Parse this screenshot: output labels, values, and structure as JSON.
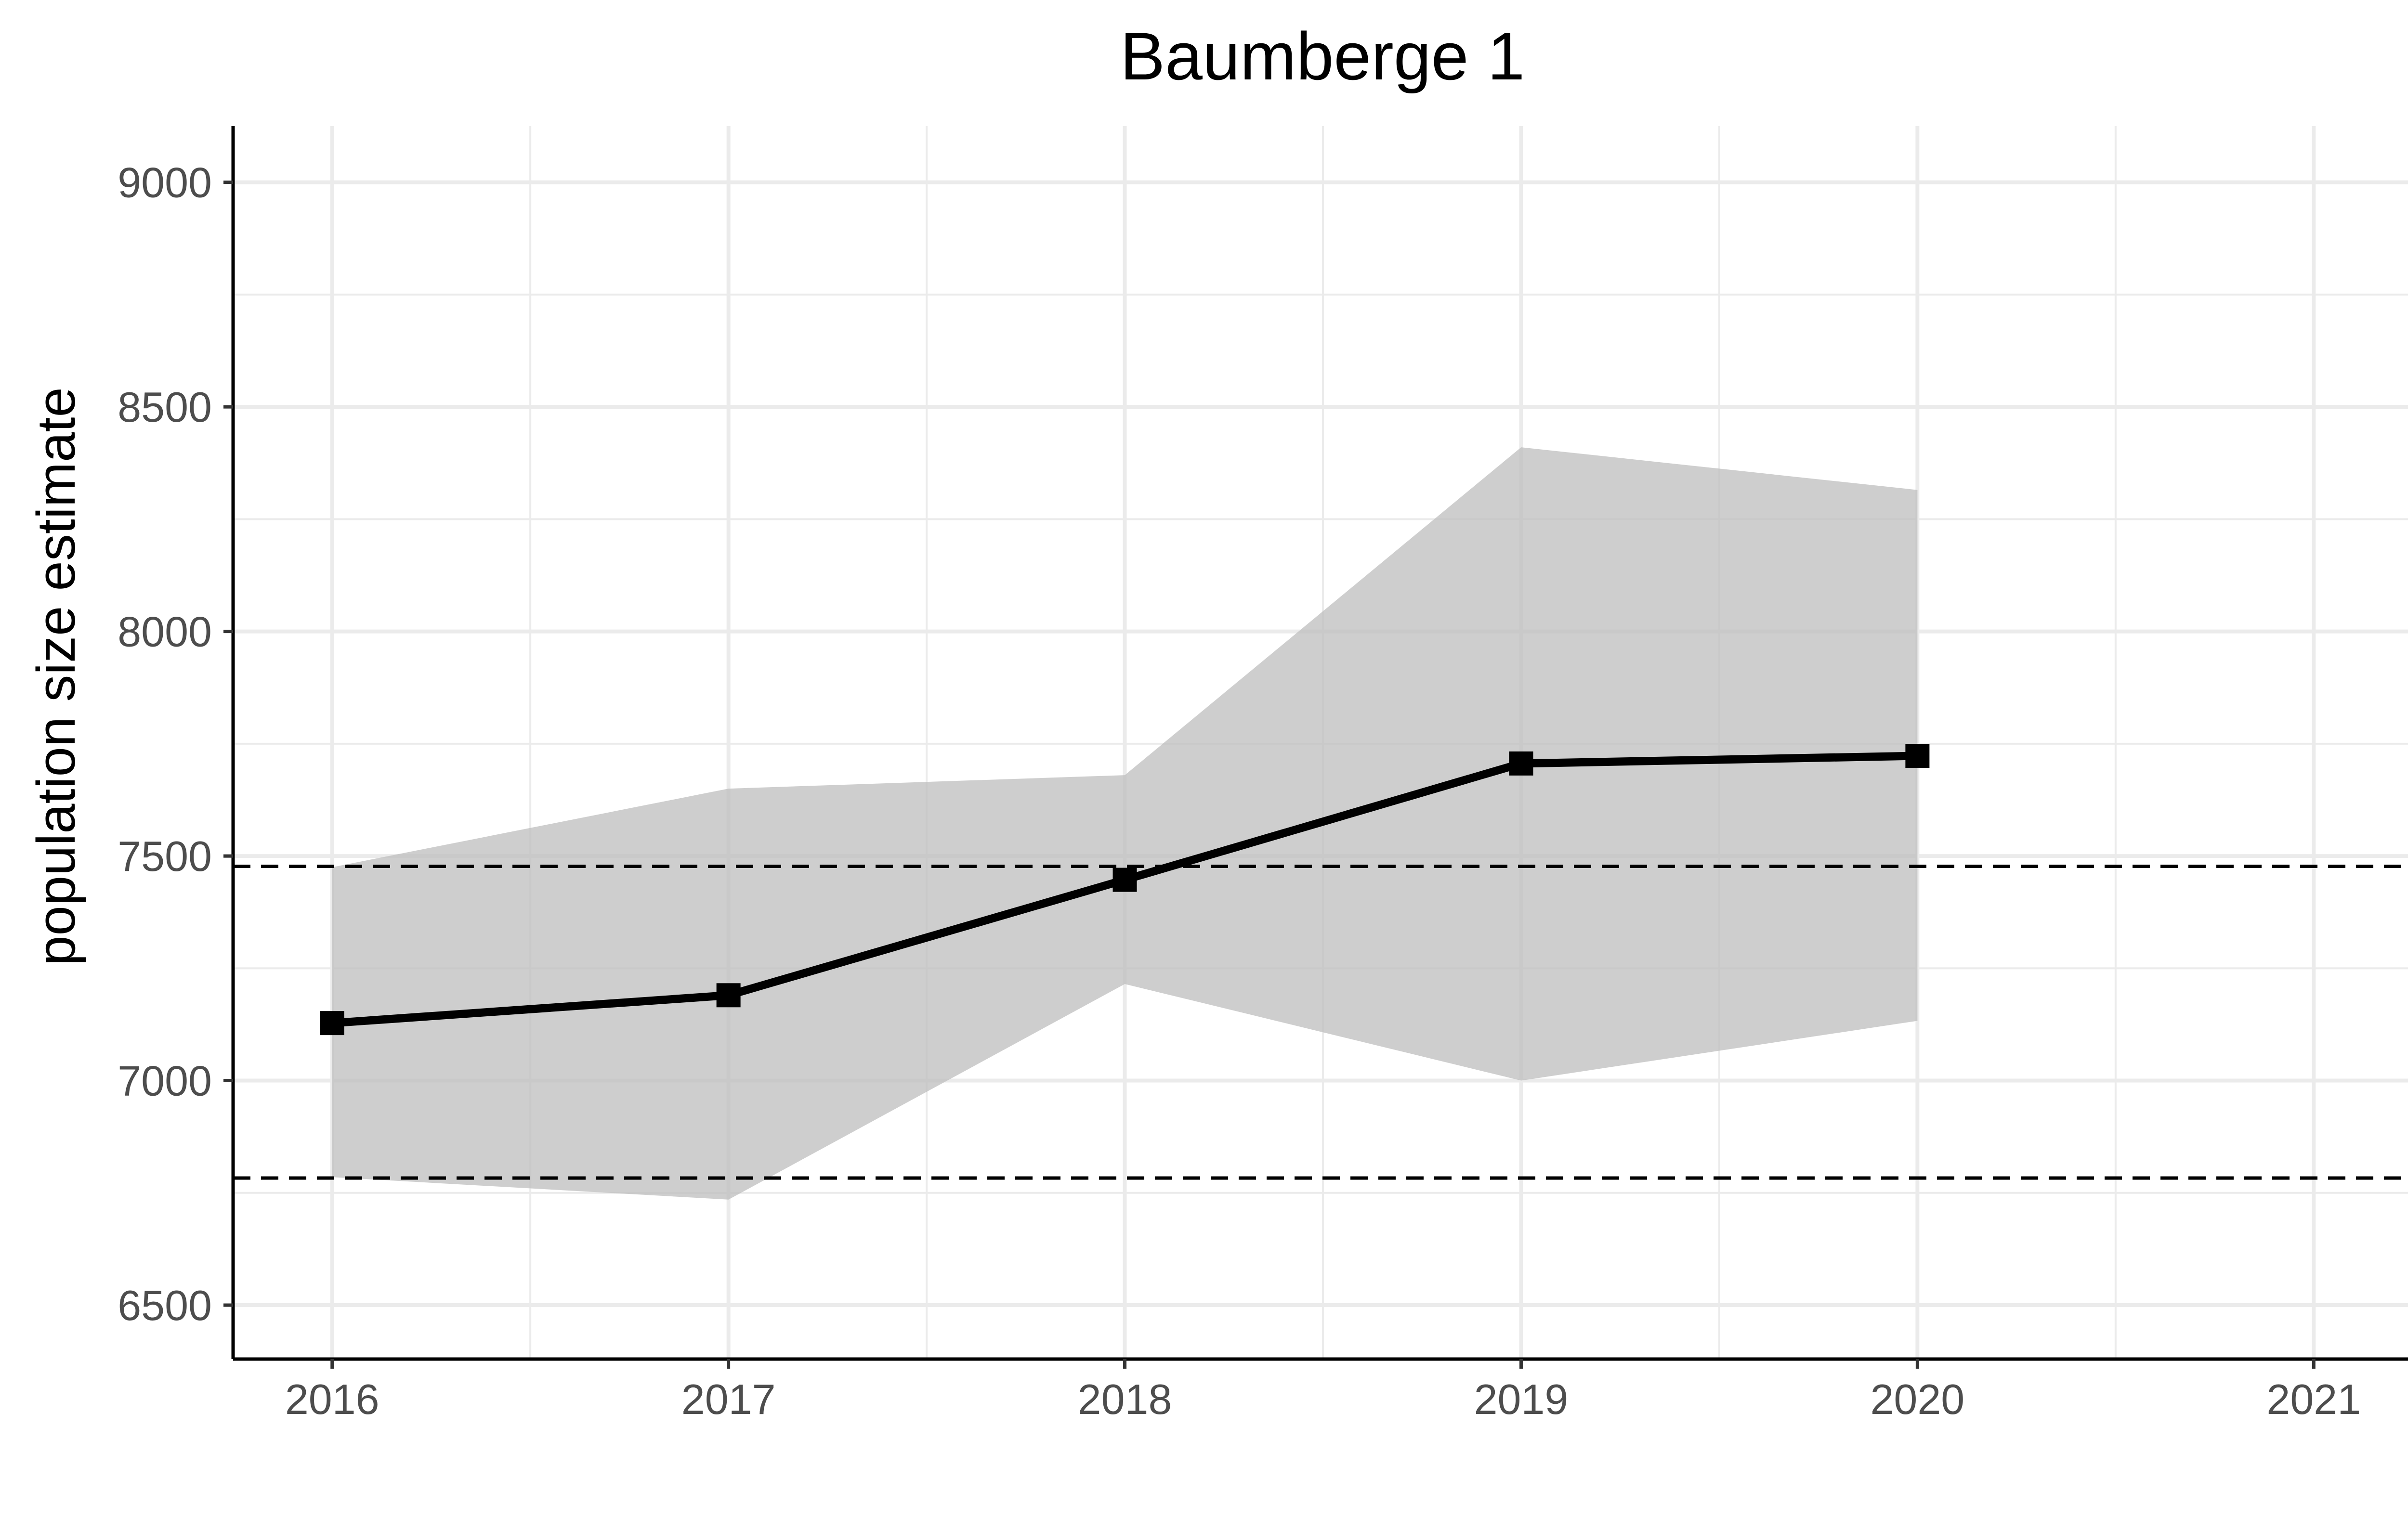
{
  "chart_data": {
    "type": "line",
    "title": "Baumberge 1",
    "xlabel": "",
    "ylabel": "population size estimate",
    "x": [
      2016,
      2017,
      2018,
      2019,
      2020
    ],
    "series": [
      {
        "values": [
          7128,
          7190,
          7447,
          7706,
          7723
        ],
        "ci_lower": [
          6785,
          6735,
          7215,
          7000,
          7133
        ],
        "ci_upper": [
          7475,
          7650,
          7680,
          8410,
          8315
        ]
      }
    ],
    "reference_lines": [
      7477,
      6783
    ],
    "xlim": [
      2015.75,
      2021.25
    ],
    "ylim": [
      6380,
      9125
    ],
    "xticks": [
      2016,
      2017,
      2018,
      2019,
      2020,
      2021
    ],
    "yticks": [
      6500,
      7000,
      7500,
      8000,
      8500,
      9000
    ],
    "grid": true,
    "legend": "none",
    "colors": {
      "line": "#000000",
      "ribbon": "#bdbdbd",
      "grid": "#ebebeb",
      "reference": "#000000"
    }
  }
}
